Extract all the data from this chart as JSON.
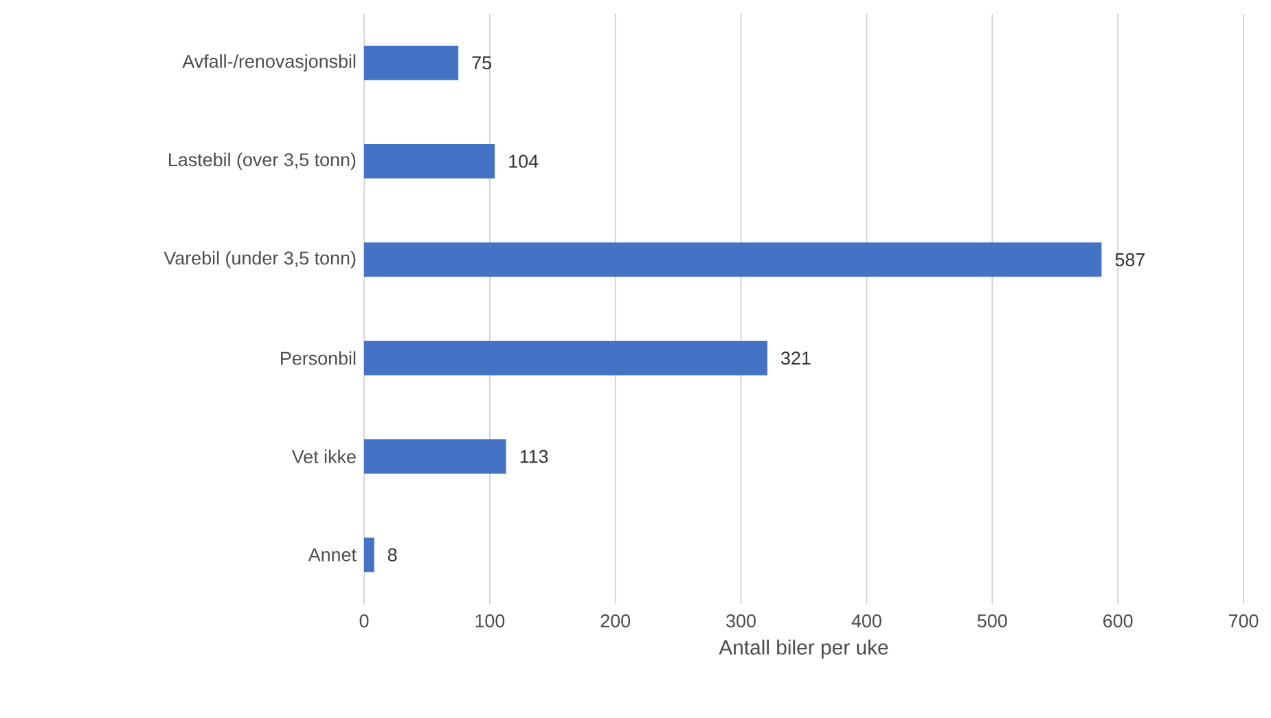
{
  "chart_data": {
    "type": "bar",
    "orientation": "horizontal",
    "xlabel": "Antall biler per uke",
    "categories": [
      "Avfall-/renovasjonsbil",
      "Lastebil (over 3,5 tonn)",
      "Varebil (under 3,5 tonn)",
      "Personbil",
      "Vet ikke",
      "Annet"
    ],
    "values": [
      75,
      104,
      587,
      321,
      113,
      8
    ],
    "color": "#4472c4",
    "xlim": [
      0,
      700
    ],
    "xticks": [
      0,
      100,
      200,
      300,
      400,
      500,
      600,
      700
    ],
    "grid": "x",
    "data_labels": true
  }
}
